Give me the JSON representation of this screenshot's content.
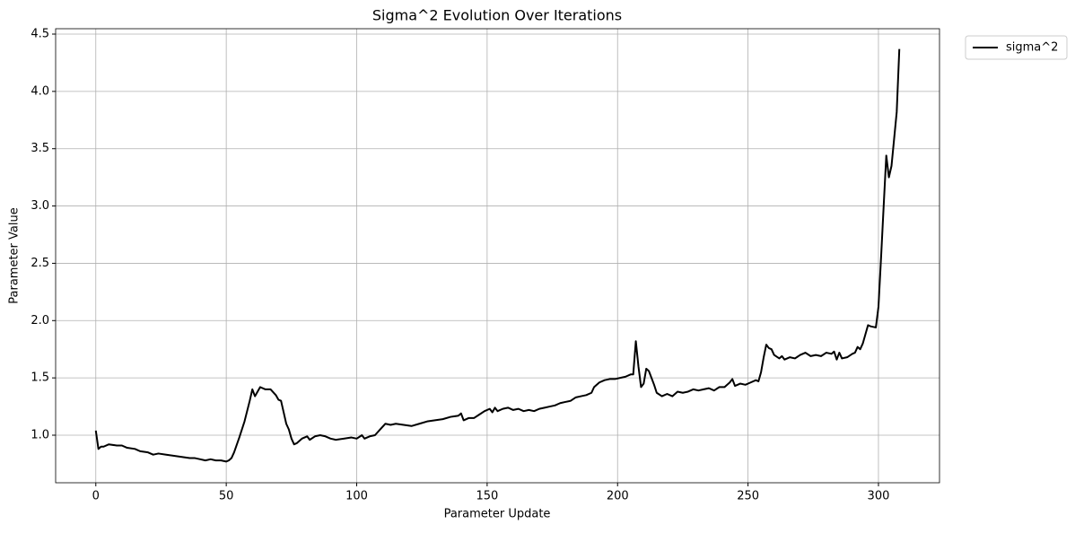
{
  "chart_data": {
    "type": "line",
    "title": "Sigma^2 Evolution Over Iterations",
    "x_label": "Parameter Update",
    "y_label": "Parameter Value",
    "x": [
      0,
      1,
      2,
      3,
      5,
      8,
      10,
      12,
      15,
      17,
      20,
      22,
      24,
      27,
      30,
      33,
      36,
      38,
      40,
      42,
      44,
      46,
      48,
      50,
      51,
      52,
      53,
      55,
      57,
      59,
      60,
      61,
      63,
      65,
      67,
      69,
      70,
      71,
      72,
      73,
      74,
      75,
      76,
      77,
      79,
      81,
      82,
      84,
      86,
      88,
      90,
      92,
      95,
      98,
      100,
      102,
      103,
      105,
      107,
      109,
      111,
      113,
      115,
      118,
      121,
      124,
      127,
      130,
      133,
      136,
      139,
      140,
      141,
      143,
      145,
      147,
      149,
      151,
      152,
      153,
      154,
      156,
      158,
      160,
      162,
      164,
      166,
      168,
      170,
      172,
      174,
      176,
      178,
      180,
      182,
      184,
      186,
      188,
      190,
      191,
      193,
      195,
      197,
      199,
      201,
      203,
      205,
      206,
      207,
      208,
      209,
      210,
      211,
      212,
      213,
      214,
      215,
      217,
      219,
      221,
      223,
      225,
      227,
      229,
      231,
      233,
      235,
      237,
      239,
      241,
      243,
      244,
      245,
      247,
      249,
      251,
      253,
      254,
      255,
      256,
      257,
      258,
      259,
      260,
      262,
      263,
      264,
      266,
      268,
      270,
      272,
      274,
      276,
      278,
      280,
      282,
      283,
      284,
      285,
      286,
      288,
      290,
      291,
      292,
      293,
      294,
      296,
      297,
      299,
      300,
      301,
      302,
      303,
      304,
      305,
      307,
      308
    ],
    "series": [
      {
        "name": "sigma^2",
        "color": "#000000",
        "values": [
          1.04,
          0.88,
          0.9,
          0.9,
          0.92,
          0.91,
          0.91,
          0.89,
          0.88,
          0.86,
          0.85,
          0.83,
          0.84,
          0.83,
          0.82,
          0.81,
          0.8,
          0.8,
          0.79,
          0.78,
          0.79,
          0.78,
          0.78,
          0.77,
          0.78,
          0.8,
          0.85,
          0.98,
          1.12,
          1.3,
          1.4,
          1.34,
          1.42,
          1.4,
          1.4,
          1.35,
          1.31,
          1.3,
          1.2,
          1.1,
          1.05,
          0.97,
          0.92,
          0.93,
          0.97,
          0.99,
          0.96,
          0.99,
          1.0,
          0.99,
          0.97,
          0.96,
          0.97,
          0.98,
          0.97,
          1.0,
          0.97,
          0.99,
          1.0,
          1.05,
          1.1,
          1.09,
          1.1,
          1.09,
          1.08,
          1.1,
          1.12,
          1.13,
          1.14,
          1.16,
          1.17,
          1.19,
          1.13,
          1.15,
          1.15,
          1.18,
          1.21,
          1.23,
          1.2,
          1.24,
          1.21,
          1.23,
          1.24,
          1.22,
          1.23,
          1.21,
          1.22,
          1.21,
          1.23,
          1.24,
          1.25,
          1.26,
          1.28,
          1.29,
          1.3,
          1.33,
          1.34,
          1.35,
          1.37,
          1.42,
          1.46,
          1.48,
          1.49,
          1.49,
          1.5,
          1.51,
          1.53,
          1.53,
          1.82,
          1.6,
          1.42,
          1.45,
          1.58,
          1.56,
          1.5,
          1.44,
          1.37,
          1.34,
          1.36,
          1.34,
          1.38,
          1.37,
          1.38,
          1.4,
          1.39,
          1.4,
          1.41,
          1.39,
          1.42,
          1.42,
          1.46,
          1.49,
          1.43,
          1.45,
          1.44,
          1.46,
          1.48,
          1.47,
          1.55,
          1.68,
          1.79,
          1.76,
          1.75,
          1.7,
          1.67,
          1.69,
          1.66,
          1.68,
          1.67,
          1.7,
          1.72,
          1.69,
          1.7,
          1.69,
          1.72,
          1.71,
          1.73,
          1.66,
          1.72,
          1.67,
          1.68,
          1.71,
          1.72,
          1.77,
          1.75,
          1.8,
          1.96,
          1.95,
          1.94,
          2.12,
          2.55,
          3.0,
          3.44,
          3.25,
          3.35,
          3.82,
          4.37
        ]
      }
    ],
    "xlim": [
      -15.4,
      323.4
    ],
    "ylim": [
      0.585,
      4.547
    ],
    "xticks": [
      0,
      50,
      100,
      150,
      200,
      250,
      300
    ],
    "yticks": [
      {
        "value": 1,
        "label": "1.0"
      },
      1.5,
      {
        "value": 2,
        "label": "2.0"
      },
      2.5,
      {
        "value": 3,
        "label": "3.0"
      },
      3.5,
      {
        "value": 4,
        "label": "4.0"
      },
      4.5
    ],
    "grid": true,
    "legend": "outside upper right"
  }
}
